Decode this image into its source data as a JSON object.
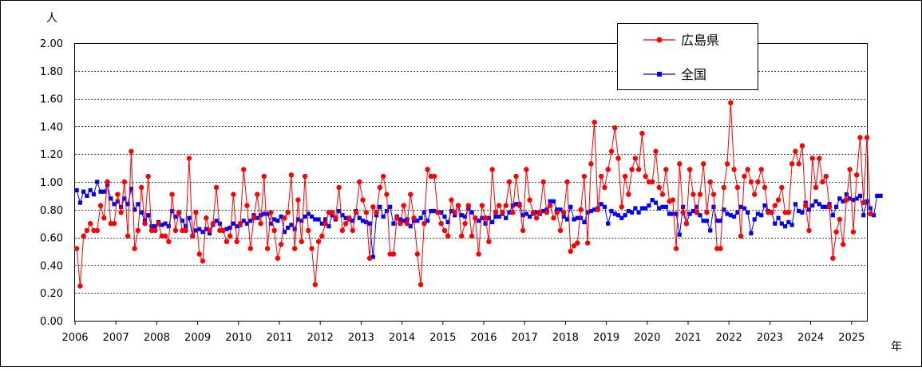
{
  "chart_data": {
    "type": "line",
    "y_unit": "人",
    "x_unit": "年",
    "ylim": [
      0,
      2
    ],
    "yticks": [
      "0.00",
      "0.20",
      "0.40",
      "0.60",
      "0.80",
      "1.00",
      "1.20",
      "1.40",
      "1.60",
      "1.80",
      "2.00"
    ],
    "xticks": [
      "2006",
      "2007",
      "2008",
      "2009",
      "2010",
      "2011",
      "2012",
      "2013",
      "2014",
      "2015",
      "2016",
      "2017",
      "2018",
      "2019",
      "2020",
      "2021",
      "2022",
      "2023",
      "2024",
      "2025"
    ],
    "x_start_year": 2006,
    "grid": "horizontal-dotted",
    "legend_position": "top-right",
    "series": [
      {
        "name": "広島県",
        "color": "#ff0000",
        "marker": "circle",
        "values": [
          0.52,
          0.25,
          0.61,
          0.65,
          0.7,
          0.65,
          0.65,
          0.83,
          0.74,
          1.0,
          0.7,
          0.7,
          0.91,
          0.78,
          1.0,
          0.61,
          1.22,
          0.52,
          0.65,
          0.96,
          0.7,
          1.04,
          0.65,
          0.65,
          0.7,
          0.61,
          0.61,
          0.57,
          0.91,
          0.65,
          0.78,
          0.65,
          0.65,
          1.17,
          0.61,
          0.78,
          0.48,
          0.43,
          0.74,
          0.65,
          0.7,
          0.96,
          0.65,
          0.65,
          0.57,
          0.61,
          0.91,
          0.57,
          0.7,
          1.09,
          0.83,
          0.52,
          0.74,
          0.91,
          0.7,
          1.04,
          0.52,
          0.78,
          0.65,
          0.45,
          0.55,
          0.74,
          0.78,
          1.05,
          0.52,
          0.87,
          0.57,
          1.04,
          0.65,
          0.52,
          0.26,
          0.57,
          0.61,
          0.7,
          0.78,
          0.78,
          0.74,
          0.96,
          0.65,
          0.7,
          0.74,
          0.65,
          0.78,
          1.0,
          0.87,
          0.78,
          0.45,
          0.82,
          0.78,
          0.96,
          1.04,
          0.91,
          0.48,
          0.48,
          0.74,
          0.7,
          0.83,
          0.7,
          0.91,
          0.74,
          0.48,
          0.26,
          0.7,
          1.09,
          1.04,
          1.04,
          0.78,
          0.7,
          0.65,
          0.61,
          0.87,
          0.78,
          0.83,
          0.61,
          0.7,
          0.83,
          0.61,
          0.74,
          0.48,
          0.83,
          0.74,
          0.57,
          1.09,
          0.78,
          0.83,
          0.78,
          0.83,
          1.0,
          0.78,
          1.04,
          0.83,
          0.65,
          1.09,
          0.87,
          0.78,
          0.74,
          0.78,
          1.0,
          0.78,
          0.83,
          0.74,
          0.78,
          0.65,
          0.78,
          1.0,
          0.5,
          0.54,
          0.56,
          0.8,
          1.04,
          0.56,
          1.13,
          1.43,
          0.8,
          1.04,
          0.96,
          1.09,
          1.22,
          1.39,
          1.17,
          0.82,
          1.04,
          0.91,
          1.09,
          1.17,
          1.09,
          1.35,
          1.04,
          1.0,
          1.0,
          1.22,
          0.96,
          0.91,
          1.09,
          0.86,
          0.87,
          0.52,
          1.13,
          0.78,
          0.7,
          1.09,
          0.91,
          0.78,
          0.91,
          1.13,
          0.78,
          1.0,
          0.91,
          0.52,
          0.52,
          0.96,
          1.13,
          1.57,
          1.09,
          0.96,
          0.61,
          1.04,
          1.09,
          1.0,
          0.91,
          1.0,
          1.09,
          0.96,
          0.78,
          0.78,
          0.83,
          0.87,
          0.96,
          0.78,
          0.78,
          1.13,
          1.22,
          1.13,
          1.26,
          0.83,
          0.65,
          1.17,
          0.96,
          1.17,
          1.0,
          1.04,
          0.82,
          0.45,
          0.64,
          0.73,
          0.55,
          0.87,
          1.09,
          0.64,
          1.05,
          1.32,
          0.85,
          1.32,
          0.77
        ]
      },
      {
        "name": "全国",
        "color": "#0000ff",
        "marker": "square",
        "values": [
          0.94,
          0.85,
          0.93,
          0.9,
          0.94,
          0.91,
          1.0,
          0.93,
          0.93,
          0.98,
          0.88,
          0.84,
          0.86,
          0.82,
          0.88,
          0.84,
          0.95,
          0.8,
          0.84,
          0.78,
          0.72,
          0.76,
          0.68,
          0.68,
          0.71,
          0.69,
          0.7,
          0.68,
          0.79,
          0.75,
          0.78,
          0.72,
          0.68,
          0.74,
          0.61,
          0.65,
          0.66,
          0.64,
          0.66,
          0.63,
          0.69,
          0.72,
          0.7,
          0.65,
          0.66,
          0.67,
          0.7,
          0.68,
          0.69,
          0.72,
          0.7,
          0.72,
          0.76,
          0.74,
          0.76,
          0.77,
          0.77,
          0.7,
          0.73,
          0.72,
          0.75,
          0.64,
          0.67,
          0.69,
          0.66,
          0.73,
          0.72,
          0.75,
          0.77,
          0.75,
          0.73,
          0.73,
          0.7,
          0.73,
          0.68,
          0.76,
          0.73,
          0.79,
          0.76,
          0.74,
          0.73,
          0.72,
          0.79,
          0.74,
          0.72,
          0.71,
          0.7,
          0.46,
          0.76,
          0.82,
          0.75,
          0.79,
          0.82,
          0.7,
          0.75,
          0.73,
          0.72,
          0.73,
          0.68,
          0.72,
          0.72,
          0.74,
          0.78,
          0.72,
          0.79,
          0.79,
          0.78,
          0.78,
          0.75,
          0.71,
          0.79,
          0.76,
          0.83,
          0.76,
          0.75,
          0.81,
          0.78,
          0.74,
          0.72,
          0.74,
          0.7,
          0.74,
          0.71,
          0.75,
          0.75,
          0.77,
          0.74,
          0.78,
          0.83,
          0.84,
          0.84,
          0.76,
          0.77,
          0.75,
          0.77,
          0.78,
          0.77,
          0.79,
          0.8,
          0.86,
          0.86,
          0.8,
          0.8,
          0.75,
          0.73,
          0.82,
          0.73,
          0.74,
          0.74,
          0.71,
          0.78,
          0.79,
          0.8,
          0.81,
          0.84,
          0.82,
          0.7,
          0.79,
          0.77,
          0.76,
          0.74,
          0.76,
          0.79,
          0.78,
          0.81,
          0.78,
          0.81,
          0.81,
          0.83,
          0.87,
          0.85,
          0.81,
          0.82,
          0.82,
          0.77,
          0.77,
          0.77,
          0.62,
          0.82,
          0.7,
          0.77,
          0.79,
          0.82,
          0.76,
          0.72,
          0.72,
          0.65,
          0.82,
          0.72,
          0.72,
          0.8,
          0.77,
          0.76,
          0.75,
          0.78,
          0.82,
          0.81,
          0.78,
          0.63,
          0.73,
          0.77,
          0.76,
          0.83,
          0.79,
          0.78,
          0.7,
          0.74,
          0.7,
          0.68,
          0.71,
          0.69,
          0.84,
          0.79,
          0.78,
          0.85,
          0.8,
          0.83,
          0.86,
          0.84,
          0.82,
          0.82,
          0.84,
          0.76,
          0.82,
          0.88,
          0.86,
          0.91,
          0.88,
          0.87,
          0.88,
          0.9,
          0.76,
          0.86,
          0.81,
          0.76,
          0.9,
          0.9
        ]
      }
    ]
  }
}
